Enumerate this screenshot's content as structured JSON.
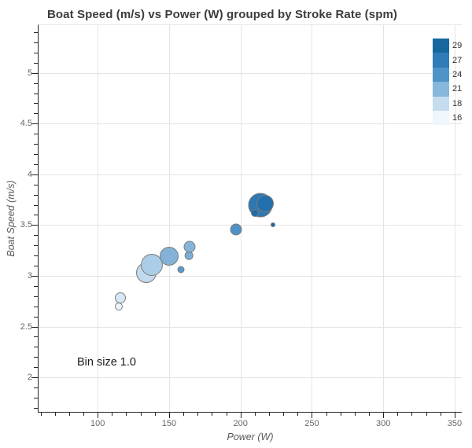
{
  "title": "Boat Speed (m/s) vs Power (W) grouped by Stroke Rate (spm)",
  "annotation": "Bin size 1.0",
  "chart_data": {
    "type": "scatter",
    "title": "Boat Speed (m/s) vs Power (W) grouped by Stroke Rate (spm)",
    "xlabel": "Power (W)",
    "ylabel": "Boat Speed (m/s)",
    "xlim": [
      58.6,
      355
    ],
    "ylim": [
      1.66,
      5.47
    ],
    "x_major_ticks": [
      100,
      150,
      200,
      250,
      300,
      350
    ],
    "y_major_ticks": [
      2,
      2.5,
      3,
      3.5,
      4,
      4.5,
      5
    ],
    "x_minor_step": 10,
    "y_minor_step": 0.1,
    "grid": true,
    "annotation": "Bin size 1.0",
    "legend": {
      "position": "top-right",
      "entries": [
        {
          "label": "29",
          "color": "#15679e"
        },
        {
          "label": "27",
          "color": "#2f7cb9"
        },
        {
          "label": "24",
          "color": "#4f94c9"
        },
        {
          "label": "21",
          "color": "#87b7db"
        },
        {
          "label": "18",
          "color": "#c5dcef"
        },
        {
          "label": "16",
          "color": "#eff6fc"
        }
      ]
    },
    "points": [
      {
        "power": 134,
        "speed": 3.03,
        "stroke_rate": 18,
        "r": 13,
        "color": "#c2d9ee"
      },
      {
        "power": 138,
        "speed": 3.11,
        "stroke_rate": 19,
        "r": 14,
        "color": "#abcde7"
      },
      {
        "power": 150,
        "speed": 3.19,
        "stroke_rate": 21,
        "r": 12,
        "color": "#83b1d7"
      },
      {
        "power": 116,
        "speed": 2.78,
        "stroke_rate": 17,
        "r": 7,
        "color": "#d8e7f5"
      },
      {
        "power": 115,
        "speed": 2.7,
        "stroke_rate": 16,
        "r": 5,
        "color": "#ecf4fb"
      },
      {
        "power": 158.5,
        "speed": 3.06,
        "stroke_rate": 24,
        "r": 4.5,
        "color": "#5998c8"
      },
      {
        "power": 164,
        "speed": 3.2,
        "stroke_rate": 22,
        "r": 5.3,
        "color": "#7cadd4"
      },
      {
        "power": 164.5,
        "speed": 3.29,
        "stroke_rate": 21,
        "r": 7.5,
        "color": "#86b4d9"
      },
      {
        "power": 197,
        "speed": 3.46,
        "stroke_rate": 24,
        "r": 7.5,
        "color": "#4e92c6"
      },
      {
        "power": 214,
        "speed": 3.7,
        "stroke_rate": 27,
        "r": 15.5,
        "color": "#2d77b2"
      },
      {
        "power": 217,
        "speed": 3.71,
        "stroke_rate": 28,
        "r": 11,
        "color": "#2470ac"
      },
      {
        "power": 210,
        "speed": 3.62,
        "stroke_rate": 29,
        "r": 5,
        "color": "#1c6ba7"
      },
      {
        "power": 223,
        "speed": 3.5,
        "stroke_rate": 29,
        "r": 3,
        "color": "#1a69a5"
      }
    ]
  }
}
